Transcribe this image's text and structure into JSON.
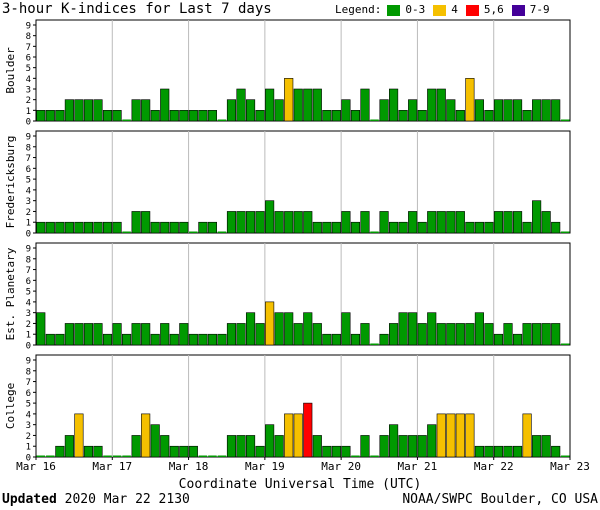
{
  "title": "3-hour K-indices for Last 7 days",
  "legend": {
    "label": "Legend:",
    "items": [
      {
        "name": "0-3",
        "color": "#009900"
      },
      {
        "name": "4",
        "color": "#f5c000"
      },
      {
        "name": "5,6",
        "color": "#ff0000"
      },
      {
        "name": "7-9",
        "color": "#440099"
      }
    ]
  },
  "footer": {
    "updated_label": "Updated",
    "updated_value": "2020 Mar 22 2130",
    "credit": "NOAA/SWPC Boulder, CO USA"
  },
  "chart_data": {
    "type": "bar",
    "xlabel": "Coordinate Universal Time (UTC)",
    "x_ticks": [
      "Mar 16",
      "Mar 17",
      "Mar 18",
      "Mar 19",
      "Mar 20",
      "Mar 21",
      "Mar 22",
      "Mar 23"
    ],
    "ylim": [
      0,
      9
    ],
    "y_ticks": [
      "0",
      "1",
      "2",
      "3",
      "4",
      "5",
      "6",
      "7",
      "8",
      "9"
    ],
    "intervals_per_day": 8,
    "color_scale": [
      {
        "range": [
          0,
          3
        ],
        "color": "#009900"
      },
      {
        "range": [
          4,
          4
        ],
        "color": "#f5c000"
      },
      {
        "range": [
          5,
          6
        ],
        "color": "#ff0000"
      },
      {
        "range": [
          7,
          9
        ],
        "color": "#440099"
      }
    ],
    "panels": [
      {
        "name": "Boulder",
        "values": [
          1,
          1,
          1,
          2,
          2,
          2,
          2,
          1,
          1,
          0,
          2,
          2,
          1,
          3,
          1,
          1,
          1,
          1,
          1,
          0,
          2,
          3,
          2,
          1,
          3,
          2,
          4,
          3,
          3,
          3,
          1,
          1,
          2,
          1,
          3,
          0,
          2,
          3,
          1,
          2,
          1,
          3,
          3,
          2,
          1,
          4,
          2,
          1,
          2,
          2,
          2,
          1,
          2,
          2,
          2,
          0
        ]
      },
      {
        "name": "Fredericksburg",
        "values": [
          1,
          1,
          1,
          1,
          1,
          1,
          1,
          1,
          1,
          0,
          2,
          2,
          1,
          1,
          1,
          1,
          0,
          1,
          1,
          0,
          2,
          2,
          2,
          2,
          3,
          2,
          2,
          2,
          2,
          1,
          1,
          1,
          2,
          1,
          2,
          0,
          2,
          1,
          1,
          2,
          1,
          2,
          2,
          2,
          2,
          1,
          1,
          1,
          2,
          2,
          2,
          1,
          3,
          2,
          1,
          0
        ]
      },
      {
        "name": "Est. Planetary",
        "values": [
          3,
          1,
          1,
          2,
          2,
          2,
          2,
          1,
          2,
          1,
          2,
          2,
          1,
          2,
          1,
          2,
          1,
          1,
          1,
          1,
          2,
          2,
          3,
          2,
          4,
          3,
          3,
          2,
          3,
          2,
          1,
          1,
          3,
          1,
          2,
          0,
          1,
          2,
          3,
          3,
          2,
          3,
          2,
          2,
          2,
          2,
          3,
          2,
          1,
          2,
          1,
          2,
          2,
          2,
          2,
          0
        ]
      },
      {
        "name": "College",
        "values": [
          0,
          0,
          1,
          2,
          4,
          1,
          1,
          0,
          0,
          0,
          2,
          4,
          3,
          2,
          1,
          1,
          1,
          0,
          0,
          0,
          2,
          2,
          2,
          1,
          3,
          2,
          4,
          4,
          5,
          2,
          1,
          1,
          1,
          0,
          2,
          0,
          2,
          3,
          2,
          2,
          2,
          3,
          4,
          4,
          4,
          4,
          1,
          1,
          1,
          1,
          1,
          4,
          2,
          2,
          1,
          0
        ]
      }
    ]
  }
}
